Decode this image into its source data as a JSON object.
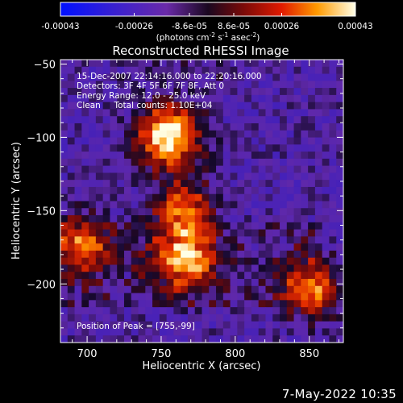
{
  "colorbar": {
    "tick_labels": [
      "-0.00043",
      "-0.00026",
      "-8.6e-05",
      "8.6e-05",
      "0.00026",
      "0.00043"
    ],
    "units_parts": [
      "(photons cm",
      "-2",
      " s",
      "-1",
      " asec",
      "-2",
      ")"
    ]
  },
  "chart_data": {
    "type": "heatmap",
    "title": "Reconstructed RHESSI Image",
    "xlabel": "Heliocentric X (arcsec)",
    "ylabel": "Heliocentric Y (arcsec)",
    "xlim": [
      682,
      873
    ],
    "ylim": [
      -240,
      -47
    ],
    "x_ticks": [
      700,
      750,
      800,
      850
    ],
    "y_ticks": [
      -50,
      -100,
      -150,
      -200
    ],
    "colorbar_range": [
      -0.00043,
      0.00043
    ],
    "colormap": "RHESSI blue-purple-red-yellow-white",
    "sources": [
      {
        "x": 755,
        "y": -99,
        "relative_flux": 1.0
      },
      {
        "x": 767,
        "y": -183,
        "relative_flux": 0.75
      },
      {
        "x": 765,
        "y": -148,
        "relative_flux": 0.6
      },
      {
        "x": 697,
        "y": -173,
        "relative_flux": 0.55
      },
      {
        "x": 852,
        "y": -203,
        "relative_flux": 0.6
      }
    ],
    "annotations": [
      "15-Dec-2007 22:14:16.000 to 22:20:16.000",
      "Detectors: 3F 4F 5F 6F 7F 8F, Att 0",
      "Energy Range: 12.0 - 25.0 keV",
      "Clean     Total counts: 1.10E+04",
      "Position of Peak = [755,-99]"
    ]
  },
  "footer": {
    "timestamp": "7-May-2022 10:35"
  }
}
